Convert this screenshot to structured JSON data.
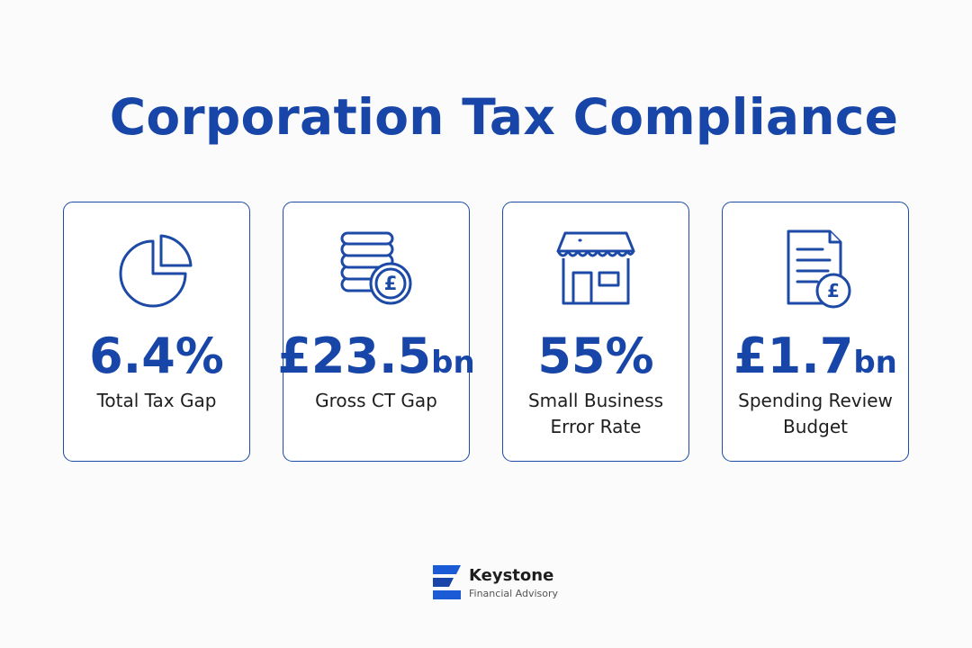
{
  "title": "Corporation Tax Compliance",
  "accent_color": "#1846a8",
  "cards": [
    {
      "icon": "pie-chart-icon",
      "value": "6.4%",
      "unit": "",
      "label": "Total Tax Gap"
    },
    {
      "icon": "coins-pound-icon",
      "value": "£23.5",
      "unit": "bn",
      "label": "Gross CT Gap"
    },
    {
      "icon": "shop-icon",
      "value": "55%",
      "unit": "",
      "label": "Small Business Error Rate"
    },
    {
      "icon": "document-pound-icon",
      "value": "£1.7",
      "unit": "bn",
      "label": "Spending Review Budget"
    }
  ],
  "footer": {
    "logo_icon": "keystone-logo-icon",
    "name": "Keystone",
    "subtitle": "Financial Advisory"
  }
}
